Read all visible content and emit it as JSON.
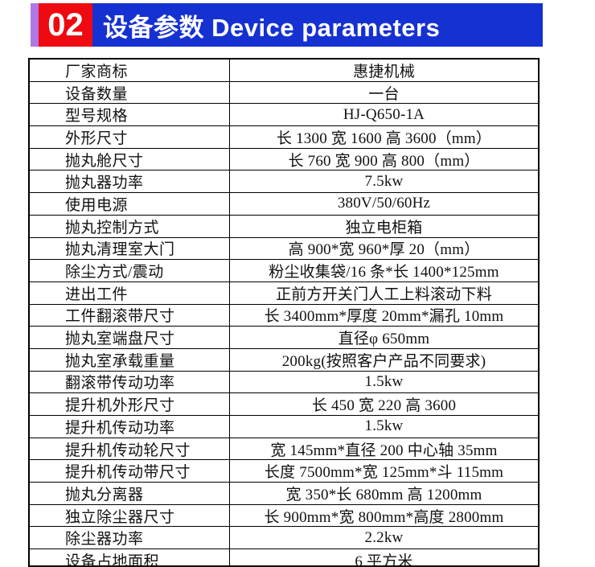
{
  "header": {
    "badge": "02",
    "title": "设备参数 Device parameters"
  },
  "colors": {
    "banner_blue": "#1631d1",
    "badge_red": "#ee0a10",
    "stripe_purple": "#b077e6",
    "border_black": "#000000",
    "text_black": "#111111"
  },
  "table": {
    "rows": [
      {
        "label": "厂家商标",
        "value": "惠捷机械"
      },
      {
        "label": "设备数量",
        "value": "一台"
      },
      {
        "label": "型号规格",
        "value": "HJ-Q650-1A"
      },
      {
        "label": "外形尺寸",
        "value": "长 1300 宽 1600 高 3600（mm）"
      },
      {
        "label": "抛丸舱尺寸",
        "value": "长 760 宽 900 高 800（mm）"
      },
      {
        "label": "抛丸器功率",
        "value": "7.5kw"
      },
      {
        "label": "使用电源",
        "value": "380V/50/60Hz"
      },
      {
        "label": "抛丸控制方式",
        "value": "独立电柜箱"
      },
      {
        "label": "抛丸清理室大门",
        "value": "高 900*宽 960*厚 20（mm）"
      },
      {
        "label": "除尘方式/震动",
        "value": "粉尘收集袋/16 条*长 1400*125mm"
      },
      {
        "label": "进出工件",
        "value": "正前方开关门人工上料滚动下料"
      },
      {
        "label": "工件翻滚带尺寸",
        "value": "长 3400mm*厚度 20mm*漏孔 10mm"
      },
      {
        "label": "抛丸室端盘尺寸",
        "value": "直径φ 650mm"
      },
      {
        "label": "抛丸室承载重量",
        "value": "200kg(按照客户产品不同要求)"
      },
      {
        "label": "翻滚带传动功率",
        "value": "1.5kw"
      },
      {
        "label": "提升机外形尺寸",
        "value": "长 450 宽 220 高 3600"
      },
      {
        "label": "提升机传动功率",
        "value": "1.5kw"
      },
      {
        "label": "提升机传动轮尺寸",
        "value": "宽 145mm*直径 200 中心轴 35mm"
      },
      {
        "label": "提升机传动带尺寸",
        "value": "长度 7500mm*宽 125mm*斗 115mm"
      },
      {
        "label": "抛丸分离器",
        "value": "宽 350*长 680mm 高 1200mm"
      },
      {
        "label": "独立除尘器尺寸",
        "value": "长 900mm*宽 800mm*高度 2800mm"
      },
      {
        "label": "除尘器功率",
        "value": "2.2kw"
      },
      {
        "label": "设备占地面积",
        "value": "6 平方米"
      }
    ]
  }
}
